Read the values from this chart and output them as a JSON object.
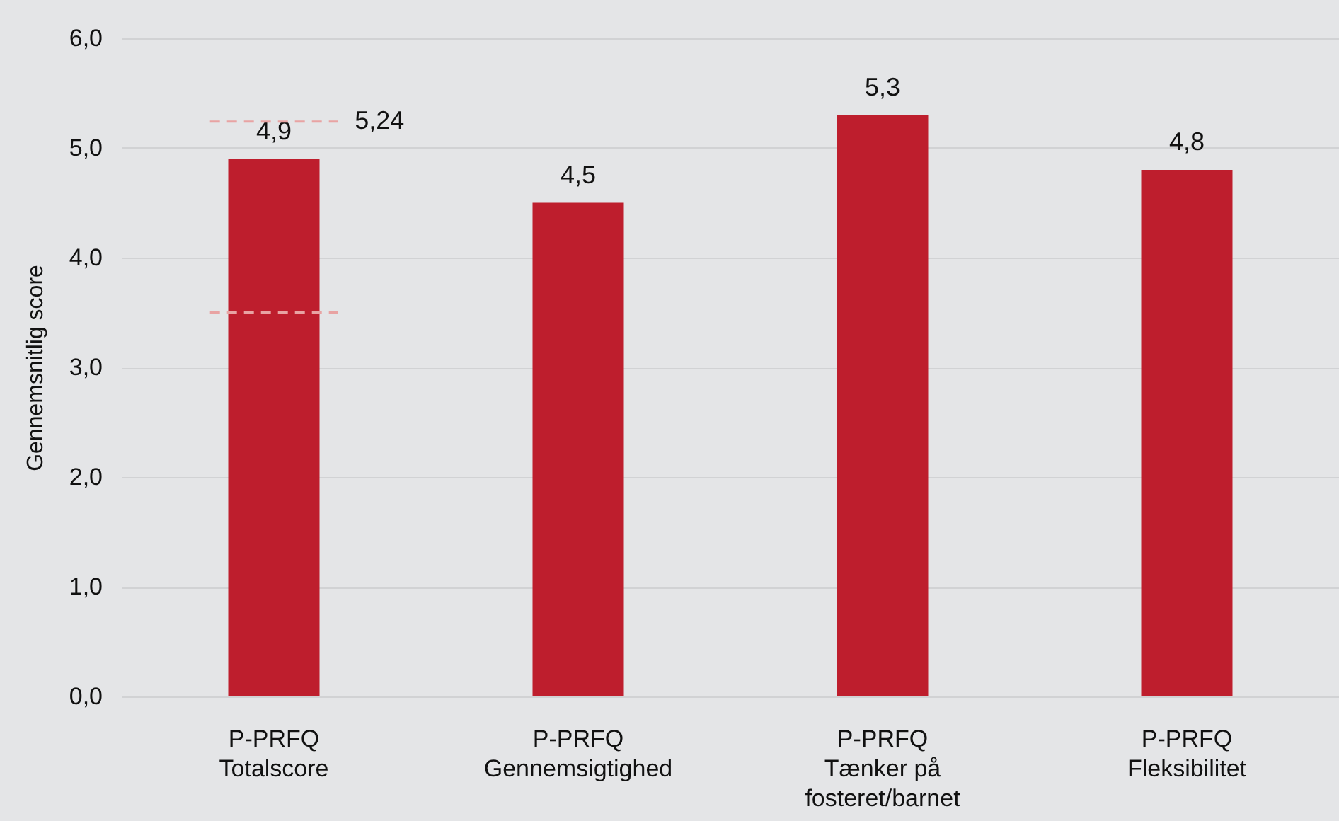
{
  "chart_data": {
    "type": "bar",
    "ylabel": "Gennemsnitlig score",
    "categories": [
      "P-PRFQ\nTotalscore",
      "P-PRFQ\nGennemsigtighed",
      "P-PRFQ\nTænker på\nfosteret/barnet",
      "P-PRFQ\nFleksibilitet"
    ],
    "values": [
      4.9,
      4.5,
      5.3,
      4.8
    ],
    "value_labels": [
      "4,9",
      "4,5",
      "5,3",
      "4,8"
    ],
    "color": "#be1e2d",
    "ylim": [
      0,
      6
    ],
    "yticks": [
      {
        "value": 0,
        "label": "0,0"
      },
      {
        "value": 1,
        "label": "1,0"
      },
      {
        "value": 2,
        "label": "2,0"
      },
      {
        "value": 3,
        "label": "3,0"
      },
      {
        "value": 4,
        "label": "4,0"
      },
      {
        "value": 5,
        "label": "5,0"
      },
      {
        "value": 6,
        "label": "6,0"
      }
    ],
    "ref_lines": [
      {
        "axis": "y",
        "value": 5.24,
        "label": "5,24",
        "color": "#e8a3a3",
        "line_style": "dashed"
      },
      {
        "axis": "y",
        "value": 3.5,
        "label": null,
        "color": "#e8a3a3",
        "line_style": "dashed"
      }
    ],
    "grid": "y"
  }
}
